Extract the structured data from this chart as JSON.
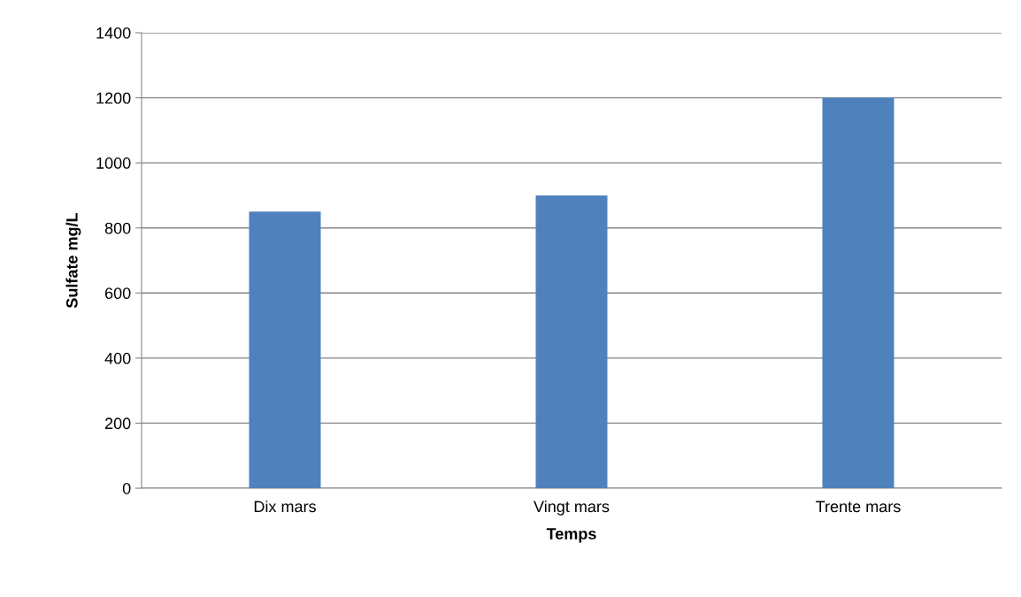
{
  "chart_data": {
    "type": "bar",
    "xlabel": "Temps",
    "ylabel": "Sulfate mg/L",
    "categories": [
      "Dix mars",
      "Vingt mars",
      "Trente mars"
    ],
    "values": [
      850,
      900,
      1200
    ],
    "color": "#4f81bd",
    "ylim": [
      0,
      1400
    ],
    "yticks": [
      0,
      200,
      400,
      600,
      800,
      1000,
      1200,
      1400
    ],
    "grid": "y"
  }
}
